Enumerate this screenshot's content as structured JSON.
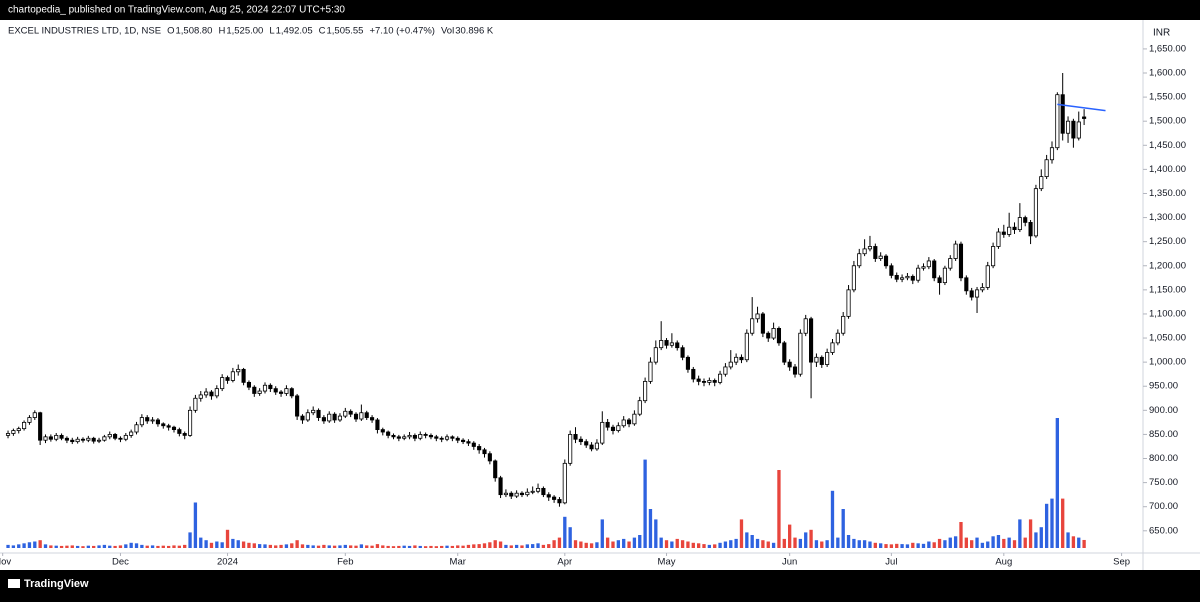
{
  "header": {
    "publisher": "chartopedia_ published on TradingView.com, Aug 25, 2024 22:07 UTC+5:30",
    "brand": "TradingView"
  },
  "chart_data": {
    "type": "candlestick",
    "symbol": "EXCEL INDUSTRIES LTD, 1D, NSE",
    "legend": [
      {
        "key": "O",
        "value": "1,508.80"
      },
      {
        "key": "H",
        "value": "1,525.00"
      },
      {
        "key": "L",
        "value": "1,492.05"
      },
      {
        "key": "C",
        "value": "1,505.55"
      }
    ],
    "change": "+7.10 (+0.47%)",
    "volume_legend": {
      "key": "Vol",
      "value": "30.896 K"
    },
    "currency": "INR",
    "up_color": "#ffffff",
    "down_color": "#000000",
    "volume_up_color": "#2e62e0",
    "volume_down_color": "#e8453c",
    "grid": false,
    "ylim": [
      606,
      1710
    ],
    "yticks": [
      {
        "value": 650,
        "label": "650.00"
      },
      {
        "value": 700,
        "label": "700.00"
      },
      {
        "value": 750,
        "label": "750.00"
      },
      {
        "value": 800,
        "label": "800.00"
      },
      {
        "value": 850,
        "label": "850.00"
      },
      {
        "value": 900,
        "label": "900.00"
      },
      {
        "value": 950,
        "label": "950.00"
      },
      {
        "value": 1000,
        "label": "1,000.00"
      },
      {
        "value": 1050,
        "label": "1,050.00"
      },
      {
        "value": 1100,
        "label": "1,100.00"
      },
      {
        "value": 1150,
        "label": "1,150.00"
      },
      {
        "value": 1200,
        "label": "1,200.00"
      },
      {
        "value": 1250,
        "label": "1,250.00"
      },
      {
        "value": 1300,
        "label": "1,300.00"
      },
      {
        "value": 1350,
        "label": "1,350.00"
      },
      {
        "value": 1400,
        "label": "1,400.00"
      },
      {
        "value": 1450,
        "label": "1,450.00"
      },
      {
        "value": 1500,
        "label": "1,500.00"
      },
      {
        "value": 1550,
        "label": "1,550.00"
      },
      {
        "value": 1600,
        "label": "1,600.00"
      },
      {
        "value": 1650,
        "label": "1,650.00"
      }
    ],
    "xlim": [
      -1.5,
      212
    ],
    "xticks": [
      {
        "value": -1,
        "label": "Nov"
      },
      {
        "value": 21,
        "label": "Dec"
      },
      {
        "value": 41,
        "label": "2024"
      },
      {
        "value": 63,
        "label": "Feb"
      },
      {
        "value": 84,
        "label": "Mar"
      },
      {
        "value": 104,
        "label": "Apr"
      },
      {
        "value": 123,
        "label": "May"
      },
      {
        "value": 146,
        "label": "Jun"
      },
      {
        "value": 165,
        "label": "Jul"
      },
      {
        "value": 186,
        "label": "Aug"
      },
      {
        "value": 208,
        "label": "Sep"
      }
    ],
    "trendline": {
      "color": "#2962ff",
      "x": [
        196,
        205
      ],
      "y": [
        1535,
        1522
      ]
    },
    "ohlc": [
      [
        848,
        858,
        842,
        852
      ],
      [
        852,
        862,
        847,
        858
      ],
      [
        858,
        866,
        852,
        862
      ],
      [
        862,
        879,
        858,
        875
      ],
      [
        875,
        890,
        870,
        885
      ],
      [
        885,
        900,
        880,
        895
      ],
      [
        895,
        897,
        828,
        838
      ],
      [
        838,
        850,
        832,
        845
      ],
      [
        845,
        850,
        835,
        840
      ],
      [
        840,
        853,
        836,
        848
      ],
      [
        848,
        852,
        838,
        842
      ],
      [
        842,
        846,
        832,
        838
      ],
      [
        838,
        843,
        830,
        835
      ],
      [
        835,
        845,
        831,
        840
      ],
      [
        840,
        844,
        833,
        838
      ],
      [
        838,
        847,
        834,
        842
      ],
      [
        842,
        845,
        831,
        836
      ],
      [
        836,
        843,
        832,
        838
      ],
      [
        838,
        849,
        835,
        845
      ],
      [
        845,
        856,
        840,
        850
      ],
      [
        850,
        853,
        838,
        842
      ],
      [
        842,
        846,
        834,
        840
      ],
      [
        840,
        853,
        836,
        848
      ],
      [
        848,
        860,
        843,
        855
      ],
      [
        855,
        876,
        850,
        870
      ],
      [
        870,
        892,
        865,
        885
      ],
      [
        885,
        890,
        872,
        878
      ],
      [
        878,
        886,
        872,
        880
      ],
      [
        880,
        884,
        866,
        872
      ],
      [
        872,
        875,
        862,
        868
      ],
      [
        868,
        872,
        858,
        865
      ],
      [
        865,
        868,
        854,
        860
      ],
      [
        860,
        864,
        846,
        852
      ],
      [
        852,
        856,
        840,
        848
      ],
      [
        848,
        908,
        845,
        900
      ],
      [
        900,
        932,
        895,
        925
      ],
      [
        925,
        940,
        918,
        932
      ],
      [
        932,
        946,
        926,
        938
      ],
      [
        938,
        942,
        922,
        930
      ],
      [
        930,
        952,
        925,
        945
      ],
      [
        945,
        975,
        940,
        968
      ],
      [
        968,
        972,
        955,
        962
      ],
      [
        962,
        988,
        958,
        980
      ],
      [
        980,
        995,
        972,
        985
      ],
      [
        985,
        988,
        952,
        958
      ],
      [
        958,
        962,
        942,
        948
      ],
      [
        948,
        952,
        928,
        935
      ],
      [
        935,
        946,
        930,
        940
      ],
      [
        940,
        958,
        935,
        952
      ],
      [
        952,
        956,
        938,
        945
      ],
      [
        945,
        950,
        932,
        938
      ],
      [
        938,
        942,
        928,
        935
      ],
      [
        935,
        952,
        930,
        945
      ],
      [
        945,
        948,
        925,
        930
      ],
      [
        930,
        934,
        880,
        888
      ],
      [
        888,
        892,
        872,
        880
      ],
      [
        880,
        902,
        876,
        895
      ],
      [
        895,
        908,
        890,
        900
      ],
      [
        900,
        904,
        878,
        885
      ],
      [
        885,
        890,
        872,
        878
      ],
      [
        878,
        898,
        874,
        892
      ],
      [
        892,
        896,
        874,
        880
      ],
      [
        880,
        894,
        876,
        888
      ],
      [
        888,
        905,
        884,
        898
      ],
      [
        898,
        902,
        886,
        892
      ],
      [
        892,
        896,
        876,
        882
      ],
      [
        882,
        912,
        878,
        895
      ],
      [
        895,
        899,
        880,
        885
      ],
      [
        885,
        890,
        874,
        880
      ],
      [
        880,
        884,
        852,
        860
      ],
      [
        860,
        864,
        848,
        855
      ],
      [
        855,
        858,
        842,
        848
      ],
      [
        848,
        852,
        840,
        845
      ],
      [
        845,
        849,
        836,
        842
      ],
      [
        842,
        850,
        838,
        845
      ],
      [
        845,
        855,
        840,
        848
      ],
      [
        848,
        852,
        836,
        842
      ],
      [
        842,
        856,
        838,
        850
      ],
      [
        850,
        854,
        842,
        848
      ],
      [
        848,
        852,
        840,
        845
      ],
      [
        845,
        849,
        836,
        842
      ],
      [
        842,
        846,
        834,
        840
      ],
      [
        840,
        850,
        836,
        845
      ],
      [
        845,
        848,
        836,
        842
      ],
      [
        842,
        846,
        832,
        838
      ],
      [
        838,
        842,
        830,
        835
      ],
      [
        835,
        840,
        826,
        832
      ],
      [
        832,
        836,
        818,
        825
      ],
      [
        825,
        830,
        810,
        818
      ],
      [
        818,
        822,
        802,
        810
      ],
      [
        810,
        815,
        788,
        795
      ],
      [
        795,
        798,
        752,
        760
      ],
      [
        760,
        764,
        718,
        725
      ],
      [
        725,
        736,
        720,
        728
      ],
      [
        728,
        732,
        716,
        722
      ],
      [
        722,
        734,
        718,
        728
      ],
      [
        728,
        732,
        720,
        725
      ],
      [
        725,
        738,
        721,
        730
      ],
      [
        730,
        742,
        726,
        732
      ],
      [
        732,
        748,
        728,
        738
      ],
      [
        738,
        742,
        720,
        725
      ],
      [
        725,
        730,
        712,
        720
      ],
      [
        720,
        724,
        708,
        715
      ],
      [
        715,
        720,
        700,
        708
      ],
      [
        708,
        798,
        705,
        790
      ],
      [
        790,
        858,
        785,
        850
      ],
      [
        850,
        865,
        832,
        840
      ],
      [
        840,
        846,
        828,
        835
      ],
      [
        835,
        840,
        822,
        828
      ],
      [
        828,
        834,
        815,
        820
      ],
      [
        820,
        840,
        816,
        832
      ],
      [
        832,
        898,
        828,
        875
      ],
      [
        875,
        882,
        858,
        865
      ],
      [
        865,
        870,
        850,
        858
      ],
      [
        858,
        875,
        854,
        868
      ],
      [
        868,
        888,
        864,
        880
      ],
      [
        880,
        884,
        865,
        872
      ],
      [
        872,
        900,
        868,
        892
      ],
      [
        892,
        928,
        888,
        920
      ],
      [
        920,
        968,
        915,
        960
      ],
      [
        960,
        1010,
        955,
        1000
      ],
      [
        1000,
        1045,
        995,
        1030
      ],
      [
        1030,
        1085,
        1025,
        1045
      ],
      [
        1045,
        1050,
        1028,
        1035
      ],
      [
        1035,
        1060,
        1030,
        1040
      ],
      [
        1040,
        1045,
        1024,
        1030
      ],
      [
        1030,
        1035,
        1004,
        1010
      ],
      [
        1010,
        1014,
        978,
        985
      ],
      [
        985,
        990,
        958,
        965
      ],
      [
        965,
        972,
        952,
        960
      ],
      [
        960,
        966,
        950,
        958
      ],
      [
        958,
        968,
        952,
        962
      ],
      [
        962,
        966,
        950,
        958
      ],
      [
        958,
        982,
        954,
        975
      ],
      [
        975,
        998,
        970,
        990
      ],
      [
        990,
        1025,
        985,
        1000
      ],
      [
        1000,
        1018,
        994,
        1010
      ],
      [
        1010,
        1016,
        998,
        1005
      ],
      [
        1005,
        1068,
        1000,
        1060
      ],
      [
        1060,
        1135,
        1055,
        1090
      ],
      [
        1090,
        1115,
        1082,
        1100
      ],
      [
        1100,
        1104,
        1052,
        1060
      ],
      [
        1060,
        1064,
        1042,
        1050
      ],
      [
        1050,
        1082,
        1046,
        1070
      ],
      [
        1070,
        1074,
        1034,
        1040
      ],
      [
        1040,
        1044,
        994,
        1000
      ],
      [
        1000,
        1006,
        982,
        990
      ],
      [
        990,
        996,
        968,
        975
      ],
      [
        975,
        1068,
        970,
        1060
      ],
      [
        1060,
        1098,
        1054,
        1090
      ],
      [
        1090,
        1094,
        925,
        1000
      ],
      [
        1000,
        1018,
        990,
        1010
      ],
      [
        1010,
        1014,
        988,
        995
      ],
      [
        995,
        1028,
        990,
        1020
      ],
      [
        1020,
        1048,
        1015,
        1040
      ],
      [
        1040,
        1068,
        1035,
        1060
      ],
      [
        1060,
        1104,
        1055,
        1095
      ],
      [
        1095,
        1160,
        1090,
        1150
      ],
      [
        1150,
        1210,
        1145,
        1200
      ],
      [
        1200,
        1235,
        1195,
        1225
      ],
      [
        1225,
        1255,
        1220,
        1235
      ],
      [
        1235,
        1262,
        1230,
        1240
      ],
      [
        1240,
        1246,
        1208,
        1215
      ],
      [
        1215,
        1228,
        1210,
        1220
      ],
      [
        1220,
        1224,
        1194,
        1200
      ],
      [
        1200,
        1205,
        1174,
        1180
      ],
      [
        1180,
        1186,
        1166,
        1172
      ],
      [
        1172,
        1182,
        1166,
        1175
      ],
      [
        1175,
        1185,
        1170,
        1178
      ],
      [
        1178,
        1182,
        1162,
        1170
      ],
      [
        1170,
        1202,
        1165,
        1195
      ],
      [
        1195,
        1205,
        1190,
        1198
      ],
      [
        1198,
        1218,
        1193,
        1210
      ],
      [
        1210,
        1214,
        1168,
        1175
      ],
      [
        1175,
        1180,
        1140,
        1165
      ],
      [
        1165,
        1200,
        1160,
        1195
      ],
      [
        1195,
        1222,
        1190,
        1215
      ],
      [
        1215,
        1252,
        1210,
        1245
      ],
      [
        1245,
        1250,
        1168,
        1175
      ],
      [
        1175,
        1180,
        1140,
        1148
      ],
      [
        1148,
        1154,
        1128,
        1135
      ],
      [
        1135,
        1156,
        1102,
        1150
      ],
      [
        1150,
        1164,
        1145,
        1155
      ],
      [
        1155,
        1208,
        1150,
        1200
      ],
      [
        1200,
        1248,
        1195,
        1240
      ],
      [
        1240,
        1278,
        1235,
        1270
      ],
      [
        1270,
        1285,
        1258,
        1265
      ],
      [
        1265,
        1310,
        1260,
        1280
      ],
      [
        1280,
        1290,
        1266,
        1275
      ],
      [
        1275,
        1330,
        1270,
        1300
      ],
      [
        1300,
        1304,
        1282,
        1290
      ],
      [
        1290,
        1295,
        1245,
        1262
      ],
      [
        1262,
        1368,
        1258,
        1360
      ],
      [
        1360,
        1400,
        1355,
        1385
      ],
      [
        1385,
        1430,
        1380,
        1420
      ],
      [
        1420,
        1458,
        1412,
        1445
      ],
      [
        1445,
        1560,
        1440,
        1555
      ],
      [
        1555,
        1600,
        1460,
        1475
      ],
      [
        1475,
        1510,
        1455,
        1500
      ],
      [
        1500,
        1505,
        1445,
        1465
      ],
      [
        1465,
        1520,
        1460,
        1498.45
      ],
      [
        1508.8,
        1525,
        1492.05,
        1505.55
      ]
    ],
    "volume": [
      12,
      10,
      14,
      18,
      22,
      25,
      30,
      14,
      10,
      9,
      8,
      9,
      10,
      8,
      7,
      9,
      8,
      10,
      12,
      9,
      8,
      10,
      14,
      20,
      18,
      12,
      9,
      10,
      8,
      9,
      8,
      10,
      9,
      12,
      60,
      175,
      40,
      30,
      20,
      25,
      22,
      70,
      35,
      30,
      25,
      20,
      18,
      15,
      14,
      12,
      10,
      12,
      14,
      18,
      30,
      14,
      12,
      10,
      9,
      12,
      10,
      9,
      10,
      12,
      10,
      9,
      14,
      10,
      9,
      15,
      10,
      8,
      7,
      8,
      9,
      8,
      10,
      8,
      7,
      8,
      7,
      8,
      9,
      8,
      10,
      9,
      12,
      14,
      15,
      18,
      22,
      30,
      25,
      12,
      10,
      12,
      10,
      14,
      15,
      18,
      12,
      15,
      30,
      40,
      120,
      80,
      30,
      25,
      20,
      18,
      22,
      110,
      40,
      25,
      30,
      35,
      25,
      40,
      50,
      340,
      150,
      110,
      40,
      30,
      25,
      35,
      30,
      25,
      20,
      18,
      15,
      12,
      14,
      20,
      25,
      30,
      35,
      110,
      60,
      50,
      35,
      30,
      25,
      20,
      300,
      35,
      90,
      40,
      35,
      60,
      70,
      30,
      25,
      30,
      220,
      40,
      150,
      50,
      35,
      30,
      30,
      25,
      20,
      18,
      15,
      14,
      16,
      15,
      14,
      20,
      18,
      16,
      25,
      22,
      35,
      30,
      40,
      45,
      100,
      40,
      30,
      40,
      20,
      25,
      45,
      50,
      35,
      40,
      30,
      110,
      40,
      110,
      60,
      80,
      170,
      190,
      500,
      190,
      60,
      45,
      40,
      30.896
    ]
  }
}
